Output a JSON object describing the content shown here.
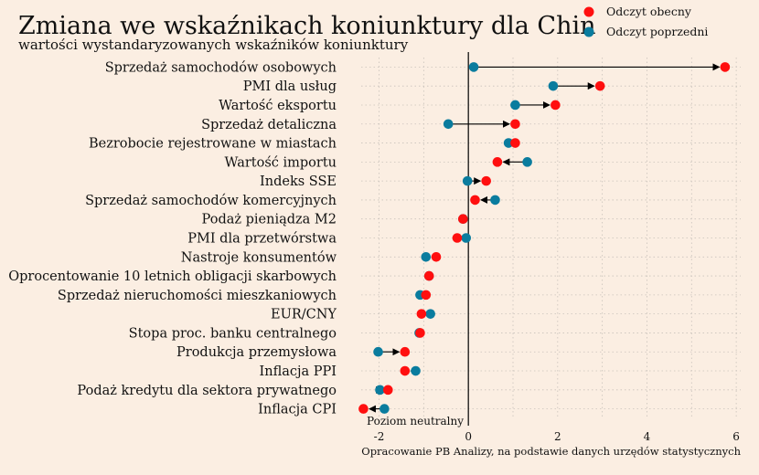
{
  "chart_data": {
    "type": "dumbbell",
    "title": "Zmiana we wskaźnikach koniunktury dla Chin",
    "subtitle": "wartości wystandaryzowanych wskaźników koniunktury",
    "source_note": "Opracowanie PB Analizy, na podstawie danych urzędów statystycznych",
    "neutral_label": "Poziom neutralny",
    "xlim": [
      -2.4,
      6.1
    ],
    "xticks": [
      -2,
      0,
      2,
      4,
      6
    ],
    "legend": [
      {
        "name": "Odczyt obecny",
        "color": "#ff0f0f"
      },
      {
        "name": "Odczyt poprzedni",
        "color": "#0a7c9e"
      }
    ],
    "categories": [
      "Sprzedaż samochodów osobowych",
      "PMI dla usług",
      "Wartość eksportu",
      "Sprzedaż detaliczna",
      "Bezrobocie rejestrowane w miastach",
      "Wartość importu",
      "Indeks SSE",
      "Sprzedaż samochodów komercyjnych",
      "Podaż pieniądza M2",
      "PMI dla przetwórstwa",
      "Nastroje konsumentów",
      "Oprocentowanie 10 letnich obligacji skarbowych",
      "Sprzedaż nieruchomości mieszkaniowych",
      "EUR/CNY",
      "Stopa proc. banku centralnego",
      "Produkcja przemysłowa",
      "Inflacja PPI",
      "Podaż kredytu dla sektora prywatnego",
      "Inflacja CPI"
    ],
    "series": [
      {
        "name": "Odczyt obecny",
        "values": [
          5.75,
          2.95,
          1.95,
          1.05,
          1.05,
          0.65,
          0.4,
          0.15,
          -0.12,
          -0.25,
          -0.72,
          -0.88,
          -0.95,
          -1.05,
          -1.08,
          -1.42,
          -1.42,
          -1.8,
          -2.35
        ]
      },
      {
        "name": "Odczyt poprzedni",
        "values": [
          0.12,
          1.9,
          1.05,
          -0.45,
          0.9,
          1.32,
          -0.02,
          0.6,
          -0.12,
          -0.05,
          -0.95,
          -0.88,
          -1.08,
          -0.85,
          -1.1,
          -2.02,
          -1.18,
          -1.98,
          -1.88
        ]
      }
    ]
  }
}
